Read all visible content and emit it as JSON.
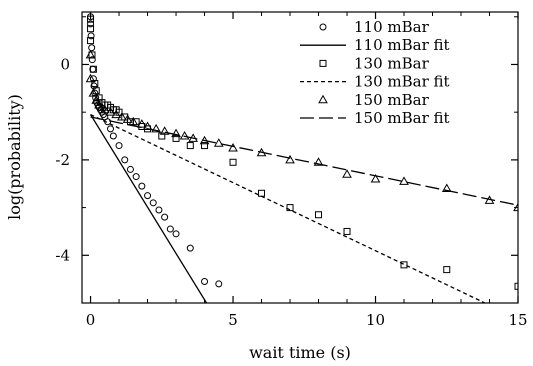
{
  "chart_data": {
    "type": "scatter",
    "xlabel": "wait time (s)",
    "ylabel": "log(probability)",
    "xlim": [
      -0.3,
      15
    ],
    "ylim": [
      -5,
      1.1
    ],
    "xticks": [
      0,
      5,
      10,
      15
    ],
    "yticks": [
      0,
      -2,
      -4
    ],
    "legend_position": "top-right",
    "grid": false,
    "series": [
      {
        "name": "110 mBar",
        "kind": "points",
        "marker": "circle",
        "x": [
          0.0,
          0.0,
          0.02,
          0.04,
          0.06,
          0.08,
          0.1,
          0.12,
          0.15,
          0.18,
          0.22,
          0.26,
          0.3,
          0.35,
          0.4,
          0.45,
          0.5,
          0.6,
          0.7,
          0.8,
          1.0,
          1.2,
          1.4,
          1.6,
          1.8,
          2.0,
          2.2,
          2.4,
          2.6,
          2.8,
          3.0,
          3.5,
          4.0,
          4.5
        ],
        "y": [
          1.0,
          0.85,
          0.6,
          0.35,
          0.1,
          -0.1,
          -0.3,
          -0.45,
          -0.6,
          -0.7,
          -0.8,
          -0.85,
          -0.9,
          -0.95,
          -1.0,
          -1.05,
          -1.1,
          -1.2,
          -1.35,
          -1.5,
          -1.7,
          -2.0,
          -2.2,
          -2.35,
          -2.55,
          -2.75,
          -2.9,
          -3.05,
          -3.2,
          -3.45,
          -3.55,
          -3.85,
          -4.55,
          -4.6
        ]
      },
      {
        "name": "110 mBar fit",
        "kind": "line",
        "dash": "solid",
        "x": [
          0,
          4.07
        ],
        "y": [
          -1.05,
          -5.0
        ]
      },
      {
        "name": "130 mBar",
        "kind": "points",
        "marker": "square",
        "x": [
          0.0,
          0.0,
          0.0,
          0.05,
          0.1,
          0.15,
          0.2,
          0.3,
          0.4,
          0.5,
          0.6,
          0.7,
          0.8,
          0.9,
          1.0,
          1.2,
          1.4,
          1.6,
          1.8,
          2.0,
          2.5,
          3.0,
          3.5,
          4.0,
          5.0,
          6.0,
          7.0,
          8.0,
          9.0,
          11.0,
          12.5,
          15.0
        ],
        "y": [
          0.95,
          0.75,
          0.5,
          0.2,
          -0.1,
          -0.4,
          -0.55,
          -0.7,
          -0.8,
          -0.85,
          -0.85,
          -0.9,
          -0.95,
          -0.95,
          -1.0,
          -1.1,
          -1.2,
          -1.2,
          -1.3,
          -1.35,
          -1.5,
          -1.55,
          -1.7,
          -1.7,
          -2.05,
          -2.7,
          -3.0,
          -3.15,
          -3.5,
          -4.2,
          -4.3,
          -4.65
        ]
      },
      {
        "name": "130 mBar fit",
        "kind": "line",
        "dash": "short",
        "x": [
          0,
          13.84
        ],
        "y": [
          -1.05,
          -5.0
        ]
      },
      {
        "name": "150 mBar",
        "kind": "points",
        "marker": "triangle",
        "x": [
          0.0,
          0.0,
          0.1,
          0.2,
          0.3,
          0.4,
          0.5,
          0.7,
          0.9,
          1.1,
          1.3,
          1.5,
          1.8,
          2.0,
          2.3,
          2.6,
          3.0,
          3.3,
          3.6,
          4.0,
          4.5,
          5.0,
          6.0,
          7.0,
          8.0,
          9.0,
          10.0,
          11.0,
          12.5,
          14.0,
          15.0
        ],
        "y": [
          0.2,
          -0.3,
          -0.6,
          -0.75,
          -0.85,
          -0.9,
          -0.95,
          -1.0,
          -1.05,
          -1.1,
          -1.15,
          -1.2,
          -1.25,
          -1.3,
          -1.35,
          -1.4,
          -1.45,
          -1.5,
          -1.55,
          -1.6,
          -1.65,
          -1.75,
          -1.85,
          -2.0,
          -2.05,
          -2.3,
          -2.4,
          -2.45,
          -2.6,
          -2.85,
          -3.0
        ]
      },
      {
        "name": "150 mBar fit",
        "kind": "line",
        "dash": "long",
        "x": [
          0,
          15.0
        ],
        "y": [
          -1.1,
          -2.95
        ]
      }
    ]
  }
}
